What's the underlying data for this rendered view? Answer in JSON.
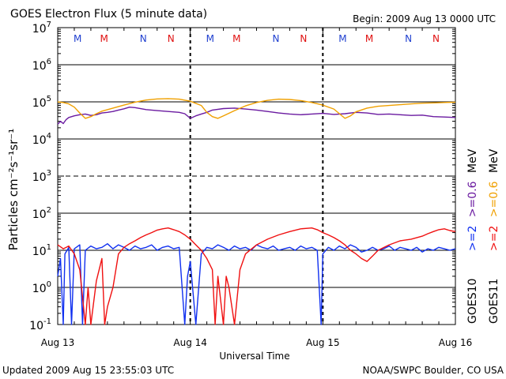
{
  "chart_data": {
    "type": "line",
    "title": "GOES Electron Flux (5 minute data)",
    "begin_label": "Begin: 2009 Aug 13 0000 UTC",
    "xlabel": "Universal Time",
    "ylabel": "Particles cm⁻²s⁻¹sr⁻¹",
    "yscale": "log",
    "ylim": [
      0.1,
      10000000
    ],
    "yticks": [
      {
        "value": 10000000,
        "base": "10",
        "exp": "7"
      },
      {
        "value": 1000000,
        "base": "10",
        "exp": "6"
      },
      {
        "value": 100000,
        "base": "10",
        "exp": "5"
      },
      {
        "value": 10000,
        "base": "10",
        "exp": "4"
      },
      {
        "value": 1000,
        "base": "10",
        "exp": "3"
      },
      {
        "value": 100,
        "base": "10",
        "exp": "2"
      },
      {
        "value": 10,
        "base": "10",
        "exp": "1"
      },
      {
        "value": 1,
        "base": "10",
        "exp": "0"
      },
      {
        "value": 0.1,
        "base": "10",
        "exp": "-1"
      }
    ],
    "xlim": [
      0,
      72
    ],
    "x_unit": "hours since 2009 Aug 13 0000 UTC",
    "xticks": [
      {
        "value": 0,
        "label": "Aug 13"
      },
      {
        "value": 24,
        "label": "Aug 14"
      },
      {
        "value": 48,
        "label": "Aug 15"
      },
      {
        "value": 72,
        "label": "Aug 16"
      }
    ],
    "day_boundaries": [
      24,
      48
    ],
    "dashed_reference_line": 1000,
    "markers": [
      {
        "x": 3.6,
        "label": "M",
        "satellite": "GOES10",
        "color": "#2040d0"
      },
      {
        "x": 8.4,
        "label": "M",
        "satellite": "GOES11",
        "color": "#e01010"
      },
      {
        "x": 15.5,
        "label": "N",
        "satellite": "GOES10",
        "color": "#2040d0"
      },
      {
        "x": 20.5,
        "label": "N",
        "satellite": "GOES11",
        "color": "#e01010"
      },
      {
        "x": 27.6,
        "label": "M",
        "satellite": "GOES10",
        "color": "#2040d0"
      },
      {
        "x": 32.4,
        "label": "M",
        "satellite": "GOES11",
        "color": "#e01010"
      },
      {
        "x": 39.5,
        "label": "N",
        "satellite": "GOES10",
        "color": "#2040d0"
      },
      {
        "x": 44.5,
        "label": "N",
        "satellite": "GOES11",
        "color": "#e01010"
      },
      {
        "x": 51.6,
        "label": "M",
        "satellite": "GOES10",
        "color": "#2040d0"
      },
      {
        "x": 56.4,
        "label": "M",
        "satellite": "GOES11",
        "color": "#e01010"
      },
      {
        "x": 63.5,
        "label": "N",
        "satellite": "GOES10",
        "color": "#2040d0"
      },
      {
        "x": 68.5,
        "label": "N",
        "satellite": "GOES11",
        "color": "#e01010"
      }
    ],
    "series": [
      {
        "name": "GOES10 >=0.6 MeV",
        "color": "#6a1aa0",
        "points": [
          [
            0,
            25000
          ],
          [
            0.5,
            30000
          ],
          [
            1,
            26000
          ],
          [
            1.5,
            33000
          ],
          [
            2,
            38000
          ],
          [
            3,
            42000
          ],
          [
            4,
            45000
          ],
          [
            5,
            47000
          ],
          [
            6,
            43000
          ],
          [
            7,
            45000
          ],
          [
            8,
            50000
          ],
          [
            9,
            52000
          ],
          [
            10,
            55000
          ],
          [
            11,
            60000
          ],
          [
            12,
            65000
          ],
          [
            13,
            72000
          ],
          [
            14,
            70000
          ],
          [
            16,
            62000
          ],
          [
            18,
            58000
          ],
          [
            20,
            55000
          ],
          [
            22,
            52000
          ],
          [
            23,
            48000
          ],
          [
            24,
            36000
          ],
          [
            25,
            42000
          ],
          [
            26,
            47000
          ],
          [
            27,
            52000
          ],
          [
            28,
            60000
          ],
          [
            30,
            66000
          ],
          [
            32,
            68000
          ],
          [
            34,
            64000
          ],
          [
            36,
            60000
          ],
          [
            38,
            55000
          ],
          [
            40,
            50000
          ],
          [
            42,
            47000
          ],
          [
            44,
            45000
          ],
          [
            46,
            47000
          ],
          [
            48,
            49000
          ],
          [
            50,
            46000
          ],
          [
            52,
            48000
          ],
          [
            54,
            52000
          ],
          [
            56,
            50000
          ],
          [
            58,
            46000
          ],
          [
            60,
            47000
          ],
          [
            62,
            45000
          ],
          [
            64,
            43000
          ],
          [
            66,
            44000
          ],
          [
            68,
            40000
          ],
          [
            70,
            39000
          ],
          [
            72,
            38000
          ]
        ]
      },
      {
        "name": "GOES11 >=0.6 MeV",
        "color": "#f0a000",
        "points": [
          [
            0,
            100000
          ],
          [
            1,
            96000
          ],
          [
            2,
            88000
          ],
          [
            3,
            72000
          ],
          [
            4,
            50000
          ],
          [
            5,
            36000
          ],
          [
            6,
            40000
          ],
          [
            7,
            48000
          ],
          [
            8,
            56000
          ],
          [
            10,
            68000
          ],
          [
            12,
            82000
          ],
          [
            14,
            98000
          ],
          [
            16,
            112000
          ],
          [
            18,
            120000
          ],
          [
            20,
            122000
          ],
          [
            22,
            118000
          ],
          [
            24,
            104000
          ],
          [
            26,
            80000
          ],
          [
            27,
            52000
          ],
          [
            28,
            40000
          ],
          [
            29,
            36000
          ],
          [
            30,
            42000
          ],
          [
            32,
            58000
          ],
          [
            34,
            78000
          ],
          [
            36,
            96000
          ],
          [
            38,
            110000
          ],
          [
            40,
            118000
          ],
          [
            42,
            116000
          ],
          [
            44,
            108000
          ],
          [
            46,
            96000
          ],
          [
            48,
            82000
          ],
          [
            50,
            64000
          ],
          [
            51,
            48000
          ],
          [
            52,
            36000
          ],
          [
            53,
            42000
          ],
          [
            54,
            54000
          ],
          [
            56,
            68000
          ],
          [
            58,
            76000
          ],
          [
            60,
            80000
          ],
          [
            62,
            84000
          ],
          [
            64,
            88000
          ],
          [
            66,
            92000
          ],
          [
            68,
            94000
          ],
          [
            70,
            96000
          ],
          [
            72,
            98000
          ]
        ]
      },
      {
        "name": "GOES10 >=2 MeV",
        "color": "#1030f0",
        "points": [
          [
            0,
            2
          ],
          [
            0.5,
            6
          ],
          [
            1,
            0.1
          ],
          [
            1.3,
            8
          ],
          [
            2,
            12
          ],
          [
            2.5,
            0.1
          ],
          [
            3,
            11
          ],
          [
            4,
            14
          ],
          [
            4.5,
            0.1
          ],
          [
            5,
            10
          ],
          [
            6,
            13
          ],
          [
            7,
            11
          ],
          [
            8,
            12
          ],
          [
            9,
            15
          ],
          [
            10,
            11
          ],
          [
            11,
            14
          ],
          [
            12,
            12
          ],
          [
            13,
            10
          ],
          [
            14,
            13
          ],
          [
            15,
            11
          ],
          [
            16,
            12
          ],
          [
            17,
            14
          ],
          [
            18,
            10
          ],
          [
            19,
            12
          ],
          [
            20,
            13
          ],
          [
            21,
            11
          ],
          [
            22,
            12
          ],
          [
            23,
            0.1
          ],
          [
            23.5,
            2
          ],
          [
            24,
            5
          ],
          [
            25,
            0.1
          ],
          [
            26,
            8
          ],
          [
            27,
            12
          ],
          [
            28,
            11
          ],
          [
            29,
            14
          ],
          [
            30,
            12
          ],
          [
            31,
            10
          ],
          [
            32,
            13
          ],
          [
            33,
            11
          ],
          [
            34,
            12
          ],
          [
            35,
            10
          ],
          [
            36,
            14
          ],
          [
            37,
            12
          ],
          [
            38,
            11
          ],
          [
            39,
            13
          ],
          [
            40,
            10
          ],
          [
            41,
            11
          ],
          [
            42,
            12
          ],
          [
            43,
            10
          ],
          [
            44,
            13
          ],
          [
            45,
            11
          ],
          [
            46,
            12
          ],
          [
            47,
            10
          ],
          [
            47.7,
            0.1
          ],
          [
            48,
            8
          ],
          [
            49,
            12
          ],
          [
            50,
            10
          ],
          [
            51,
            13
          ],
          [
            52,
            11
          ],
          [
            53,
            14
          ],
          [
            54,
            12
          ],
          [
            55,
            9
          ],
          [
            56,
            10
          ],
          [
            57,
            12
          ],
          [
            58,
            10
          ],
          [
            59,
            11
          ],
          [
            60,
            13
          ],
          [
            61,
            10
          ],
          [
            62,
            12
          ],
          [
            63,
            11
          ],
          [
            64,
            10
          ],
          [
            65,
            12
          ],
          [
            66,
            9
          ],
          [
            67,
            11
          ],
          [
            68,
            10
          ],
          [
            69,
            12
          ],
          [
            70,
            11
          ],
          [
            71,
            10
          ],
          [
            72,
            11
          ]
        ]
      },
      {
        "name": "GOES11 >=2 MeV",
        "color": "#f01010",
        "points": [
          [
            0,
            14
          ],
          [
            1,
            11
          ],
          [
            2,
            13
          ],
          [
            3,
            8
          ],
          [
            4,
            3
          ],
          [
            5,
            0.1
          ],
          [
            5.5,
            1
          ],
          [
            6,
            0.1
          ],
          [
            7,
            1.5
          ],
          [
            8,
            6
          ],
          [
            8.5,
            0.1
          ],
          [
            9,
            0.3
          ],
          [
            10,
            1
          ],
          [
            11,
            8
          ],
          [
            12,
            12
          ],
          [
            13,
            15
          ],
          [
            14,
            18
          ],
          [
            15,
            22
          ],
          [
            16,
            26
          ],
          [
            17,
            30
          ],
          [
            18,
            35
          ],
          [
            19,
            38
          ],
          [
            20,
            40
          ],
          [
            21,
            36
          ],
          [
            22,
            32
          ],
          [
            23,
            26
          ],
          [
            24,
            20
          ],
          [
            25,
            14
          ],
          [
            26,
            10
          ],
          [
            27,
            6
          ],
          [
            28,
            3
          ],
          [
            28.5,
            0.1
          ],
          [
            29,
            2
          ],
          [
            30,
            0.1
          ],
          [
            30.5,
            2
          ],
          [
            31,
            1
          ],
          [
            32,
            0.1
          ],
          [
            33,
            3
          ],
          [
            34,
            8
          ],
          [
            36,
            14
          ],
          [
            38,
            20
          ],
          [
            40,
            26
          ],
          [
            42,
            32
          ],
          [
            44,
            38
          ],
          [
            46,
            40
          ],
          [
            47,
            36
          ],
          [
            48,
            30
          ],
          [
            49,
            26
          ],
          [
            50,
            22
          ],
          [
            51,
            18
          ],
          [
            52,
            14
          ],
          [
            53,
            10
          ],
          [
            54,
            8
          ],
          [
            55,
            6
          ],
          [
            56,
            5
          ],
          [
            57,
            7
          ],
          [
            58,
            10
          ],
          [
            60,
            14
          ],
          [
            62,
            18
          ],
          [
            64,
            20
          ],
          [
            66,
            24
          ],
          [
            67,
            28
          ],
          [
            68,
            32
          ],
          [
            69,
            36
          ],
          [
            70,
            38
          ],
          [
            71,
            34
          ],
          [
            72,
            32
          ]
        ]
      }
    ],
    "right_legend": {
      "goes10": "GOES10",
      "goes10_spec": ">=2 >=0.6 MeV",
      "goes10_range_a": ">=2",
      "goes10_range_b": ">=0.6",
      "goes10_unit": "MeV",
      "goes11": "GOES11",
      "goes11_range_a": ">=2",
      "goes11_range_b": ">=0.6",
      "goes11_unit": "MeV"
    }
  },
  "footer": {
    "updated": "Updated 2009 Aug 15 23:55:03 UTC",
    "credit": "NOAA/SWPC Boulder, CO USA"
  },
  "colors": {
    "goes10_hi": "#1030f0",
    "goes10_lo": "#6a1aa0",
    "goes11_hi": "#f01010",
    "goes11_lo": "#f0a000"
  }
}
